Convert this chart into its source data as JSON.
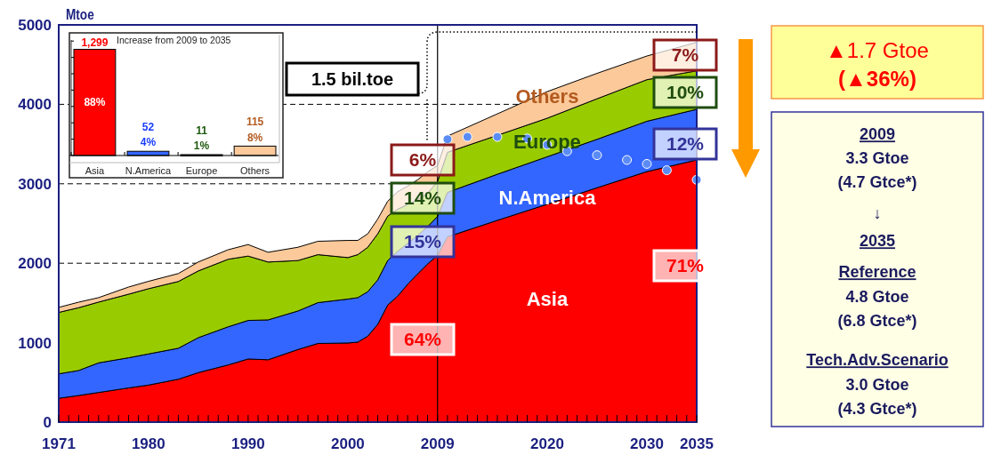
{
  "chart_data": [
    {
      "type": "area",
      "stacked": true,
      "ylabel": "Mtoe",
      "xlim": [
        1971,
        2035
      ],
      "ylim": [
        0,
        5000
      ],
      "yticks": [
        0,
        1000,
        2000,
        3000,
        4000,
        5000
      ],
      "grid": "y",
      "xticks": [
        1971,
        {
          "value": 1972,
          "label": null
        },
        {
          "value": 1973,
          "label": null
        },
        {
          "value": 1974,
          "label": null
        },
        {
          "value": 1975,
          "label": null
        },
        {
          "value": 1976,
          "label": null
        },
        {
          "value": 1977,
          "label": null
        },
        {
          "value": 1978,
          "label": null
        },
        {
          "value": 1979,
          "label": null
        },
        1980,
        {
          "value": 1981,
          "label": null
        },
        {
          "value": 1982,
          "label": null
        },
        {
          "value": 1983,
          "label": null
        },
        {
          "value": 1984,
          "label": null
        },
        {
          "value": 1985,
          "label": null
        },
        {
          "value": 1986,
          "label": null
        },
        {
          "value": 1987,
          "label": null
        },
        {
          "value": 1988,
          "label": null
        },
        {
          "value": 1989,
          "label": null
        },
        1990,
        {
          "value": 1991,
          "label": null
        },
        {
          "value": 1992,
          "label": null
        },
        {
          "value": 1993,
          "label": null
        },
        {
          "value": 1994,
          "label": null
        },
        {
          "value": 1995,
          "label": null
        },
        {
          "value": 1996,
          "label": null
        },
        {
          "value": 1997,
          "label": null
        },
        {
          "value": 1998,
          "label": null
        },
        {
          "value": 1999,
          "label": null
        },
        2000,
        {
          "value": 2001,
          "label": null
        },
        {
          "value": 2002,
          "label": null
        },
        {
          "value": 2003,
          "label": null
        },
        {
          "value": 2004,
          "label": null
        },
        {
          "value": 2005,
          "label": null
        },
        {
          "value": 2006,
          "label": null
        },
        {
          "value": 2007,
          "label": null
        },
        {
          "value": 2008,
          "label": null
        },
        2009,
        {
          "value": 2010,
          "label": null
        },
        {
          "value": 2011,
          "label": null
        },
        {
          "value": 2012,
          "label": null
        },
        {
          "value": 2013,
          "label": null
        },
        {
          "value": 2014,
          "label": null
        },
        {
          "value": 2015,
          "label": null
        },
        {
          "value": 2016,
          "label": null
        },
        {
          "value": 2017,
          "label": null
        },
        {
          "value": 2018,
          "label": null
        },
        {
          "value": 2019,
          "label": null
        },
        2020,
        {
          "value": 2021,
          "label": null
        },
        {
          "value": 2022,
          "label": null
        },
        {
          "value": 2023,
          "label": null
        },
        {
          "value": 2024,
          "label": null
        },
        {
          "value": 2025,
          "label": null
        },
        {
          "value": 2026,
          "label": null
        },
        {
          "value": 2027,
          "label": null
        },
        {
          "value": 2028,
          "label": null
        },
        {
          "value": 2029,
          "label": null
        },
        2030,
        {
          "value": 2031,
          "label": null
        },
        {
          "value": 2032,
          "label": null
        },
        {
          "value": 2033,
          "label": null
        },
        {
          "value": 2034,
          "label": null
        },
        2035
      ],
      "x": [
        1971,
        1973,
        1975,
        1978,
        1980,
        1983,
        1985,
        1988,
        1990,
        1992,
        1995,
        1997,
        2000,
        2001,
        2002,
        2003,
        2004,
        2005,
        2006,
        2007,
        2008,
        2009,
        2010,
        2015,
        2020,
        2025,
        2030,
        2035
      ],
      "series": [
        {
          "name": "Asia",
          "color": "#ff0000",
          "values": [
            300,
            335,
            373,
            430,
            466,
            540,
            623,
            720,
            795,
            785,
            914,
            990,
            996,
            1007,
            1082,
            1231,
            1474,
            1586,
            1735,
            1866,
            1990,
            2100,
            2332,
            2540,
            2742,
            2950,
            3153,
            3300
          ]
        },
        {
          "name": "N.America",
          "color": "#3366ff",
          "values": [
            308,
            315,
            373,
            380,
            392,
            390,
            440,
            480,
            485,
            502,
            485,
            514,
            553,
            560,
            560,
            560,
            560,
            564,
            515,
            484,
            470,
            490,
            560,
            580,
            598,
            610,
            634,
            637
          ]
        },
        {
          "name": "Europe",
          "color": "#99cc00",
          "values": [
            773,
            790,
            765,
            800,
            821,
            840,
            840,
            850,
            810,
            728,
            635,
            604,
            522,
            541,
            559,
            579,
            559,
            530,
            490,
            450,
            420,
            440,
            504,
            490,
            485,
            510,
            523,
            485
          ]
        },
        {
          "name": "Others",
          "color": "#fcc99a",
          "values": [
            63,
            70,
            56,
            90,
            93,
            100,
            112,
            120,
            145,
            123,
            167,
            168,
            216,
            179,
            169,
            186,
            187,
            220,
            230,
            250,
            270,
            200,
            204,
            270,
            335,
            320,
            298,
            358
          ]
        },
        {
          "type": "scatter",
          "marker": "circle",
          "color": "#5b8cf5",
          "x": [
            2010,
            2012,
            2015,
            2018,
            2020,
            2022,
            2025,
            2028,
            2030,
            2032,
            2035
          ],
          "values": [
            3560,
            3590,
            3590,
            3570,
            3490,
            3410,
            3360,
            3300,
            3250,
            3170,
            3050
          ]
        }
      ],
      "ref_lines": [
        {
          "axis": "x",
          "value": 2009,
          "color": "#000000"
        }
      ],
      "annotations": [
        "64%",
        "15%",
        "14%",
        "6%",
        "71%",
        "12%",
        "10%",
        "7%",
        "1.5 bil.toe"
      ]
    },
    {
      "type": "bar",
      "title": "Increase from 2009 to 2035",
      "categories": [
        "Asia",
        "N.America",
        "Europe",
        "Others"
      ],
      "values": [
        1299,
        52,
        11,
        115
      ],
      "colors": [
        "#ff0000",
        "#3366ff",
        "#1f3d0f",
        "#fcc99a"
      ],
      "value_labels": [
        "1,299",
        "52",
        "11",
        "115"
      ],
      "ylim": [
        0,
        1500
      ],
      "yticks": [
        {
          "value": 0,
          "label": null
        },
        {
          "value": 200,
          "label": null
        },
        {
          "value": 400,
          "label": null
        },
        {
          "value": 600,
          "label": null
        },
        {
          "value": 800,
          "label": null
        },
        {
          "value": 1000,
          "label": null
        },
        {
          "value": 1200,
          "label": null
        },
        {
          "value": 1400,
          "label": null
        }
      ],
      "tick_labels": "x",
      "annotations": [
        "88%",
        "4%",
        "1%",
        "8%"
      ]
    },
    {
      "type": "other",
      "annotations": [
        "▲1.7 Gtoe",
        "(▲36%)",
        "2009",
        "3.3 Gtoe",
        "(4.7 Gtce*)",
        "↓",
        "2035",
        "Reference",
        "4.8 Gtoe",
        "(6.8 Gtce*)",
        "Tech.Adv.Scenario",
        "3.0 Gtoe",
        "(4.3 Gtce*)"
      ]
    }
  ]
}
